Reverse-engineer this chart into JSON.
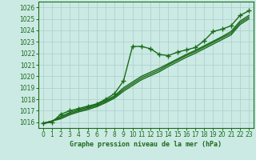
{
  "bg_color": "#cceae4",
  "grid_color": "#aacccc",
  "line_color": "#1a6b1a",
  "marker_color": "#1a6b1a",
  "title": "Graphe pression niveau de la mer (hPa)",
  "title_color": "#1a6b1a",
  "xlim": [
    -0.5,
    23.5
  ],
  "ylim": [
    1015.5,
    1026.5
  ],
  "yticks": [
    1016,
    1017,
    1018,
    1019,
    1020,
    1021,
    1022,
    1023,
    1024,
    1025,
    1026
  ],
  "xticks": [
    0,
    1,
    2,
    3,
    4,
    5,
    6,
    7,
    8,
    9,
    10,
    11,
    12,
    13,
    14,
    15,
    16,
    17,
    18,
    19,
    20,
    21,
    22,
    23
  ],
  "series": [
    {
      "x": [
        0,
        1,
        2,
        3,
        4,
        5,
        6,
        7,
        8,
        9,
        10,
        11,
        12,
        13,
        14,
        15,
        16,
        17,
        18,
        19,
        20,
        21,
        22,
        23
      ],
      "y": [
        1015.9,
        1016.0,
        1016.7,
        1017.0,
        1017.2,
        1017.4,
        1017.6,
        1018.0,
        1018.5,
        1019.6,
        1022.6,
        1022.6,
        1022.4,
        1021.9,
        1021.8,
        1022.1,
        1022.3,
        1022.5,
        1023.1,
        1023.9,
        1024.1,
        1024.4,
        1025.3,
        1025.7
      ],
      "marker": "+",
      "markersize": 4.0,
      "linewidth": 1.0
    },
    {
      "x": [
        0,
        1,
        2,
        3,
        4,
        5,
        6,
        7,
        8,
        9,
        10,
        11,
        12,
        13,
        14,
        15,
        16,
        17,
        18,
        19,
        20,
        21,
        22,
        23
      ],
      "y": [
        1015.9,
        1016.1,
        1016.5,
        1016.85,
        1017.1,
        1017.3,
        1017.55,
        1017.9,
        1018.3,
        1019.0,
        1019.5,
        1020.0,
        1020.35,
        1020.7,
        1021.1,
        1021.5,
        1021.9,
        1022.25,
        1022.65,
        1023.05,
        1023.45,
        1023.9,
        1024.8,
        1025.3
      ],
      "marker": null,
      "markersize": 0,
      "linewidth": 1.0
    },
    {
      "x": [
        0,
        1,
        2,
        3,
        4,
        5,
        6,
        7,
        8,
        9,
        10,
        11,
        12,
        13,
        14,
        15,
        16,
        17,
        18,
        19,
        20,
        21,
        22,
        23
      ],
      "y": [
        1015.9,
        1016.1,
        1016.4,
        1016.75,
        1017.0,
        1017.2,
        1017.45,
        1017.8,
        1018.2,
        1018.85,
        1019.35,
        1019.85,
        1020.2,
        1020.55,
        1021.0,
        1021.4,
        1021.8,
        1022.15,
        1022.55,
        1022.95,
        1023.35,
        1023.75,
        1024.65,
        1025.15
      ],
      "marker": null,
      "markersize": 0,
      "linewidth": 1.0
    },
    {
      "x": [
        0,
        1,
        2,
        3,
        4,
        5,
        6,
        7,
        8,
        9,
        10,
        11,
        12,
        13,
        14,
        15,
        16,
        17,
        18,
        19,
        20,
        21,
        22,
        23
      ],
      "y": [
        1015.9,
        1016.1,
        1016.3,
        1016.65,
        1016.9,
        1017.1,
        1017.35,
        1017.7,
        1018.1,
        1018.7,
        1019.2,
        1019.7,
        1020.05,
        1020.4,
        1020.85,
        1021.25,
        1021.65,
        1022.0,
        1022.4,
        1022.8,
        1023.2,
        1023.6,
        1024.5,
        1025.0
      ],
      "marker": null,
      "markersize": 0,
      "linewidth": 1.0
    }
  ]
}
